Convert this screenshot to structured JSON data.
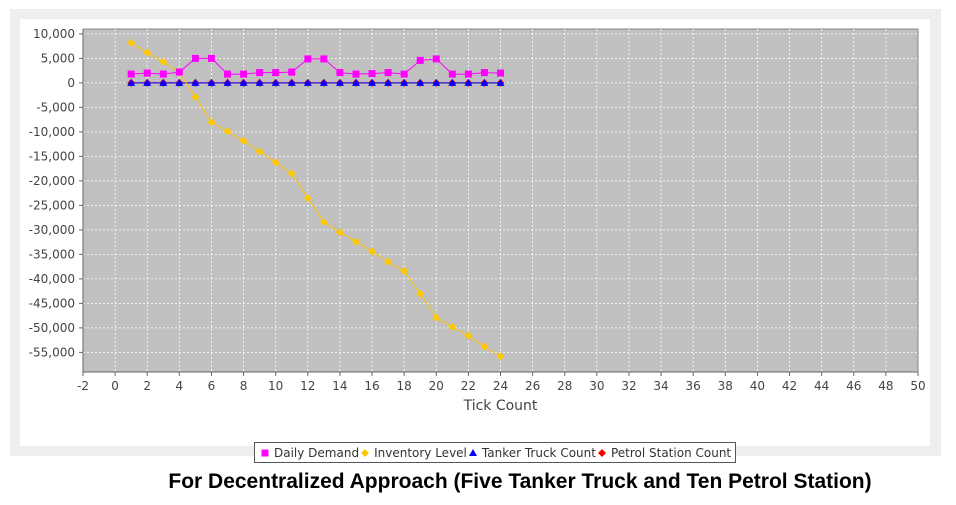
{
  "caption": "For Decentralized Approach (Five Tanker Truck and Ten Petrol Station)",
  "chart_data": {
    "type": "line",
    "title": "",
    "xlabel": "Tick Count",
    "ylabel": "",
    "xlim": [
      -2,
      50
    ],
    "ylim": [
      -59000,
      11000
    ],
    "xticks": [
      -2,
      0,
      2,
      4,
      6,
      8,
      10,
      12,
      14,
      16,
      18,
      20,
      22,
      24,
      26,
      28,
      30,
      32,
      34,
      36,
      38,
      40,
      42,
      44,
      46,
      48,
      50
    ],
    "yticks": [
      10000,
      5000,
      0,
      -5000,
      -10000,
      -15000,
      -20000,
      -25000,
      -30000,
      -35000,
      -40000,
      -45000,
      -50000,
      -55000
    ],
    "ytick_labels": [
      "10,000",
      "5,000",
      "0",
      "-5,000",
      "-10,000",
      "-15,000",
      "-20,000",
      "-25,000",
      "-30,000",
      "-35,000",
      "-40,000",
      "-45,000",
      "-50,000",
      "-55,000"
    ],
    "grid": true,
    "legend_position": "bottom",
    "x": [
      1,
      2,
      3,
      4,
      5,
      6,
      7,
      8,
      9,
      10,
      11,
      12,
      13,
      14,
      15,
      16,
      17,
      18,
      19,
      20,
      21,
      22,
      23,
      24
    ],
    "series": [
      {
        "name": "Daily Demand",
        "color": "#ff00ff",
        "marker": "square",
        "values": [
          1800,
          2000,
          1800,
          2200,
          5000,
          5000,
          1800,
          1800,
          2100,
          2100,
          2200,
          4900,
          4900,
          2100,
          1800,
          1900,
          2100,
          1800,
          4600,
          4900,
          1800,
          1800,
          2100,
          2000
        ]
      },
      {
        "name": "Inventory Level",
        "color": "#ffc800",
        "marker": "circle",
        "values": [
          8200,
          6200,
          4300,
          2100,
          -2900,
          -8000,
          -9900,
          -11800,
          -14000,
          -16200,
          -18500,
          -23500,
          -28400,
          -30500,
          -32400,
          -34400,
          -36500,
          -38400,
          -43000,
          -47900,
          -49800,
          -51600,
          -53800,
          -55800
        ]
      },
      {
        "name": "Tanker Truck Count",
        "color": "#0000ff",
        "marker": "triangle",
        "values": [
          5,
          5,
          5,
          5,
          5,
          5,
          5,
          5,
          5,
          5,
          5,
          5,
          5,
          5,
          5,
          5,
          5,
          5,
          5,
          5,
          5,
          5,
          5,
          5
        ]
      },
      {
        "name": "Petrol Station Count",
        "color": "#ff0000",
        "marker": "diamond",
        "values": [
          10,
          10,
          10,
          10,
          10,
          10,
          10,
          10,
          10,
          10,
          10,
          10,
          10,
          10,
          10,
          10,
          10,
          10,
          10,
          10,
          10,
          10,
          10,
          10
        ]
      }
    ],
    "plot_background": "#c0c0c0"
  }
}
